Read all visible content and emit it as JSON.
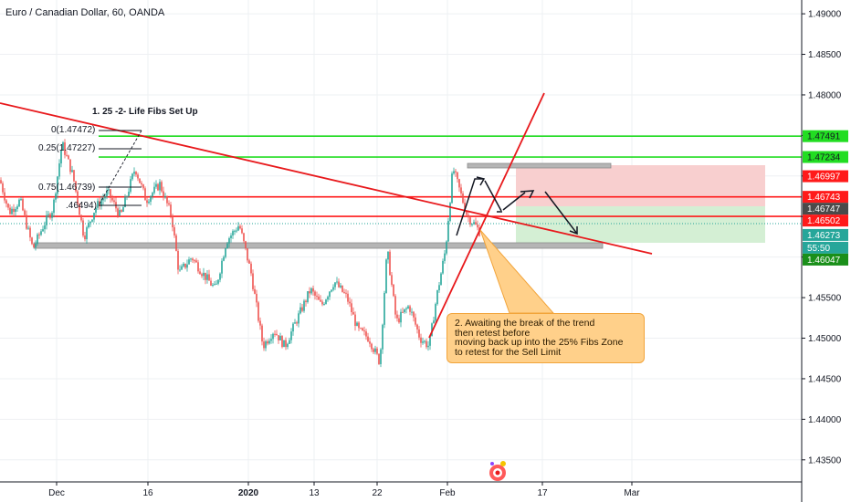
{
  "header": {
    "title": "Euro / Canadian Dollar, 60, OANDA"
  },
  "chart_data": {
    "type": "candlestick",
    "title": "Euro / Canadian Dollar, 60, OANDA",
    "y_ticks": [
      "1.49000",
      "1.48500",
      "1.48000",
      "1.47500",
      "1.47000",
      "1.46500",
      "1.46000",
      "1.45500",
      "1.45000",
      "1.44500",
      "1.44000",
      "1.43500",
      "1.43000"
    ],
    "ylim": [
      1.4298,
      1.4917
    ],
    "x_ticks": [
      "Dec",
      "16",
      "2020",
      "13",
      "22",
      "Feb",
      "17",
      "Mar"
    ],
    "price_labels": [
      {
        "value": "1.47491",
        "color": "#22dd22",
        "text_color": "#131722"
      },
      {
        "value": "1.47234",
        "color": "#22dd22",
        "text_color": "#131722"
      },
      {
        "value": "1.46997",
        "color": "#ff1a1a",
        "text_color": "#ffffff"
      },
      {
        "value": "1.46743",
        "color": "#ff1a1a",
        "text_color": "#ffffff"
      },
      {
        "value": "1.46747",
        "color": "#4a4a4a",
        "text_color": "#ffffff"
      },
      {
        "value": "1.46502",
        "color": "#ff1a1a",
        "text_color": "#ffffff"
      },
      {
        "value": "1.46273",
        "color": "#26a69a",
        "text_color": "#ffffff"
      },
      {
        "value": "55:50",
        "color": "#26a69a",
        "text_color": "#ffffff"
      },
      {
        "value": "1.46047",
        "color": "#1a8f1a",
        "text_color": "#ffffff"
      }
    ],
    "horizontal_levels": [
      {
        "value": 1.47491,
        "color": "#22dd22"
      },
      {
        "value": 1.47234,
        "color": "#22dd22"
      },
      {
        "value": 1.46743,
        "color": "#ff1a1a"
      },
      {
        "value": 1.46502,
        "color": "#ff1a1a"
      }
    ],
    "current_price": 1.46273,
    "grid": true
  },
  "annotations": {
    "setup_title": "1. 25 -2- Life Fibs Set Up",
    "fib_levels": [
      "0(1.47472)",
      "0.25(1.47227)",
      "0.75(1.46739)",
      ".46494)"
    ],
    "callout_lines": [
      "2. Awaiting the break of the trend",
      "then retest before",
      "moving back up into the 25% Fibs Zone",
      "to retest for the Sell Limit"
    ]
  },
  "colors": {
    "candle_up": "#26a69a",
    "candle_down": "#ef5350",
    "risk_zone": "#f8cfcf",
    "profit_zone": "#d4efd4",
    "trendline": "#e8191c"
  }
}
